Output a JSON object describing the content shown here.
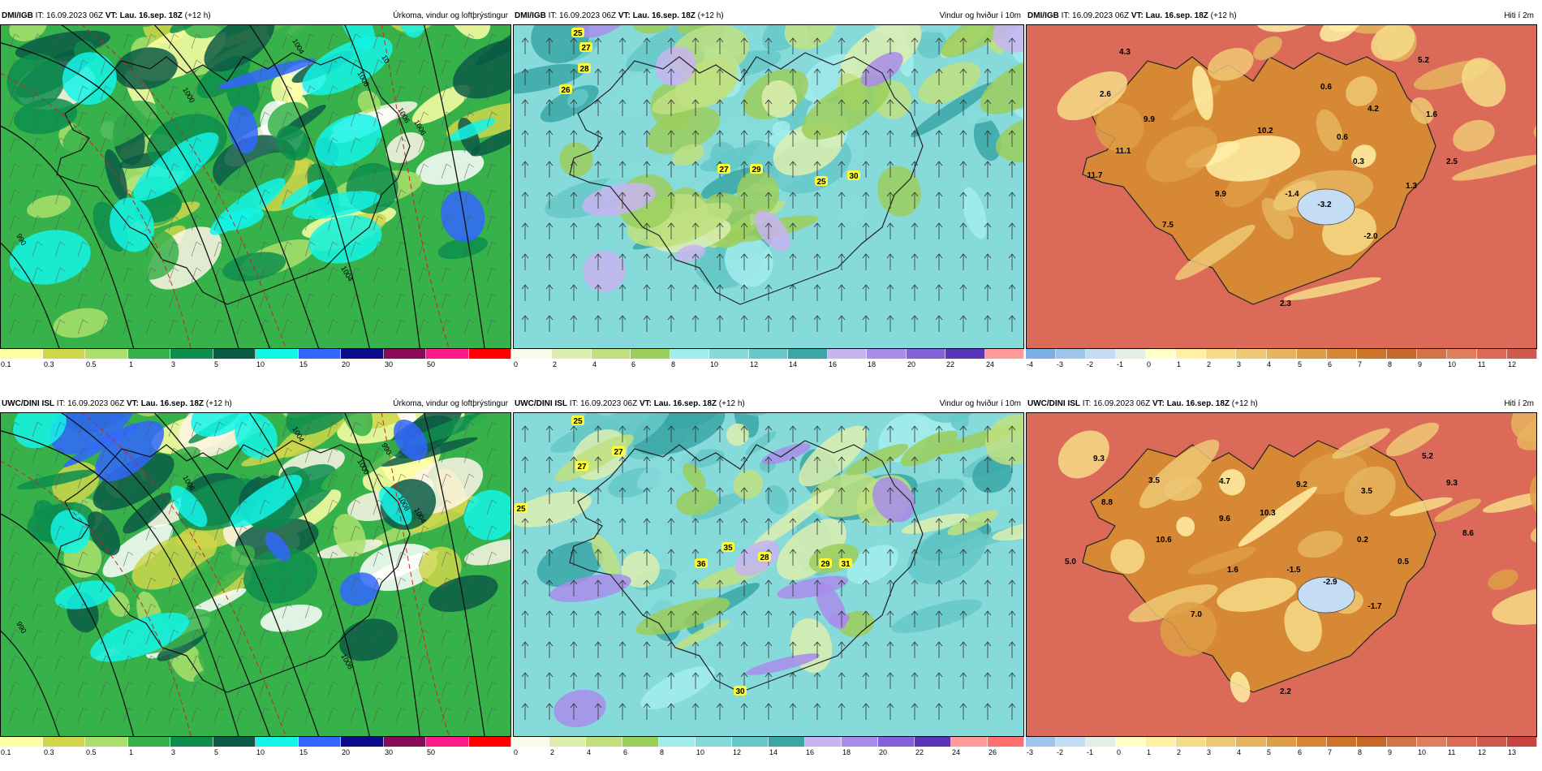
{
  "rows": [
    {
      "model": "DMI/IGB",
      "it_label": "IT: 16.09.2023 06Z",
      "vt_label": "VT: Lau. 16.sep. 18Z",
      "lead": "(+12 h)",
      "panels": [
        {
          "title": "Úrkoma, vindur og loftþrýstingur",
          "scale": [
            "0.1",
            "0.3",
            "0.5",
            "1",
            "3",
            "5",
            "10",
            "15",
            "20",
            "30",
            "50"
          ],
          "colors": [
            "#ffffa6",
            "#cfd64a",
            "#aadf6b",
            "#37b24a",
            "#0d8e4e",
            "#0a5a45",
            "#13f5e7",
            "#3366ff",
            "#0a0a8a",
            "#8a0a5a",
            "#ff1a8c",
            "#ff0000"
          ],
          "contour_labels": [
            "1004",
            "1006",
            "1000",
            "1006",
            "990",
            "1006",
            "1004",
            "10"
          ]
        },
        {
          "title": "Vindur og hviður í 10m",
          "scale": [
            "0",
            "2",
            "4",
            "6",
            "8",
            "10",
            "12",
            "14",
            "16",
            "18",
            "20",
            "22",
            "24"
          ],
          "colors": [
            "#f8fbe8",
            "#dceeb0",
            "#c0e080",
            "#9cce5c",
            "#a3ecec",
            "#86dada",
            "#66c8c8",
            "#3aa6a6",
            "#c8b4f0",
            "#a98cea",
            "#8560d8",
            "#5c34b8",
            "#ff9a9a"
          ],
          "gust_labels": [
            "25",
            "27",
            "28",
            "26",
            "27",
            "29",
            "25",
            "30"
          ]
        },
        {
          "title": "Hiti í 2m",
          "scale": [
            "-4",
            "-3",
            "-2",
            "-1",
            "0",
            "1",
            "2",
            "3",
            "4",
            "5",
            "6",
            "7",
            "8",
            "9",
            "10",
            "11",
            "12"
          ],
          "colors": [
            "#7ab0e6",
            "#9ec4ee",
            "#c4dcf4",
            "#e4eee4",
            "#ffffc8",
            "#fff0a6",
            "#f6dc88",
            "#eec874",
            "#e6b45e",
            "#de9e46",
            "#d68834",
            "#cc7428",
            "#c6682a",
            "#d2744a",
            "#de7e5c",
            "#dc6a58",
            "#d05a4e"
          ],
          "temps": [
            "4.3",
            "5.2",
            "2.6",
            "0.6",
            "4.2",
            "9.9",
            "10.2",
            "1.6",
            "11.1",
            "0.6",
            "2.5",
            "0.3",
            "11.7",
            "1.3",
            "9.9",
            "-1.4",
            "-3.2",
            "7.5",
            "-2.0",
            "2.3"
          ]
        }
      ]
    },
    {
      "model": "UWC/DINI ISL",
      "it_label": "IT: 16.09.2023 06Z",
      "vt_label": "VT: Lau. 16.sep. 18Z",
      "lead": "(+12 h)",
      "panels": [
        {
          "title": "Úrkoma, vindur og loftþrýstingur",
          "scale": [
            "0.1",
            "0.3",
            "0.5",
            "1",
            "3",
            "5",
            "10",
            "15",
            "20",
            "30",
            "50"
          ],
          "colors": [
            "#ffffa6",
            "#cfd64a",
            "#aadf6b",
            "#37b24a",
            "#0d8e4e",
            "#0a5a45",
            "#13f5e7",
            "#3366ff",
            "#0a0a8a",
            "#8a0a5a",
            "#ff1a8c",
            "#ff0000"
          ],
          "contour_labels": [
            "1004",
            "1000",
            "1006",
            "1008",
            "990",
            "1004",
            "1006",
            "990"
          ]
        },
        {
          "title": "Vindur og hviður í 10m",
          "scale": [
            "0",
            "2",
            "4",
            "6",
            "8",
            "10",
            "12",
            "14",
            "16",
            "18",
            "20",
            "22",
            "24",
            "26"
          ],
          "colors": [
            "#f8fbe8",
            "#dceeb0",
            "#c0e080",
            "#9cce5c",
            "#a3ecec",
            "#86dada",
            "#66c8c8",
            "#3aa6a6",
            "#c8b4f0",
            "#a98cea",
            "#8560d8",
            "#5c34b8",
            "#ff9a9a",
            "#ff7070"
          ],
          "gust_labels": [
            "25",
            "27",
            "27",
            "25",
            "35",
            "36",
            "28",
            "29",
            "31",
            "30"
          ]
        },
        {
          "title": "Hiti í 2m",
          "scale": [
            "-3",
            "-2",
            "-1",
            "0",
            "1",
            "2",
            "3",
            "4",
            "5",
            "6",
            "7",
            "8",
            "9",
            "10",
            "11",
            "12",
            "13"
          ],
          "colors": [
            "#9ec4ee",
            "#c4dcf4",
            "#e4eee4",
            "#ffffc8",
            "#fff0a6",
            "#f6dc88",
            "#eec874",
            "#e6b45e",
            "#de9e46",
            "#d68834",
            "#cc7428",
            "#c6682a",
            "#d2744a",
            "#de7e5c",
            "#dc6a58",
            "#d05a4e",
            "#c84440"
          ],
          "temps": [
            "9.3",
            "5.2",
            "3.5",
            "4.7",
            "8.8",
            "9.2",
            "3.5",
            "9.3",
            "9.6",
            "10.3",
            "10.6",
            "0.2",
            "8.6",
            "5.0",
            "1.6",
            "-1.5",
            "0.5",
            "-2.9",
            "-1.7",
            "7.0",
            "2.2"
          ]
        }
      ]
    }
  ]
}
